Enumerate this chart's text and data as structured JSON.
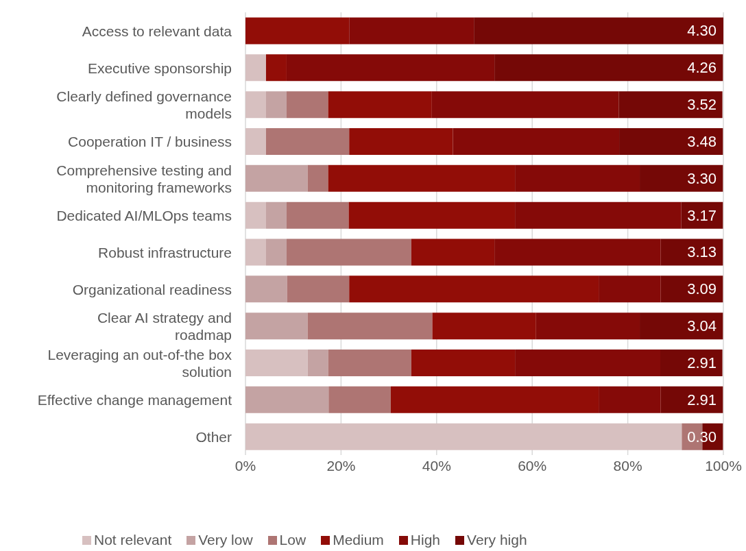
{
  "chart_data": {
    "type": "bar",
    "orientation": "horizontal",
    "stacked": true,
    "categories": [
      "Access to relevant data",
      "Executive sponsorship",
      "Clearly defined governance models",
      "Cooperation IT / business",
      "Comprehensive testing and monitoring frameworks",
      "Dedicated AI/MLOps teams",
      "Robust infrastructure",
      "Organizational readiness",
      "Clear AI strategy and roadmap",
      "Leveraging an out-of-the box solution",
      "Effective change management",
      "Other"
    ],
    "series": [
      {
        "name": "Not relevant",
        "color": "#d7c0c0",
        "values": [
          0,
          4.3,
          4.3,
          4.3,
          0,
          4.3,
          4.3,
          0,
          0,
          13.0,
          0,
          91.3
        ]
      },
      {
        "name": "Very low",
        "color": "#c4a3a3",
        "values": [
          0,
          0,
          4.3,
          0,
          13.0,
          4.3,
          4.3,
          8.7,
          13.0,
          4.3,
          17.4,
          0
        ]
      },
      {
        "name": "Low",
        "color": "#ae7573",
        "values": [
          0,
          0,
          8.7,
          17.4,
          4.3,
          13.0,
          26.1,
          13.0,
          26.1,
          17.4,
          13.0,
          4.3
        ]
      },
      {
        "name": "Medium",
        "color": "#920d07",
        "values": [
          21.7,
          4.3,
          21.7,
          21.7,
          39.1,
          34.8,
          17.4,
          52.2,
          21.7,
          21.7,
          43.5,
          0
        ]
      },
      {
        "name": "High",
        "color": "#850a08",
        "values": [
          26.1,
          43.5,
          39.1,
          34.8,
          26.1,
          34.8,
          34.8,
          13.0,
          21.7,
          30.4,
          13.0,
          0
        ]
      },
      {
        "name": "Very high",
        "color": "#750806",
        "values": [
          52.2,
          47.8,
          21.7,
          21.7,
          17.4,
          8.7,
          13.0,
          13.0,
          17.4,
          13.0,
          13.0,
          4.3
        ]
      }
    ],
    "xlim": [
      0,
      100
    ],
    "xticks": [
      {
        "value": 0,
        "label": "0%"
      },
      {
        "value": 20,
        "label": "20%"
      },
      {
        "value": 40,
        "label": "40%"
      },
      {
        "value": 60,
        "label": "60%"
      },
      {
        "value": 80,
        "label": "80%"
      },
      {
        "value": 100,
        "label": "100%"
      }
    ],
    "grid": "x",
    "legend": "bottom",
    "annotations": [
      {
        "text": "4.30",
        "y": "Access to relevant data"
      },
      {
        "text": "4.26",
        "y": "Executive sponsorship"
      },
      {
        "text": "3.52",
        "y": "Clearly defined governance models"
      },
      {
        "text": "3.48",
        "y": "Cooperation IT / business"
      },
      {
        "text": "3.30",
        "y": "Comprehensive testing and monitoring frameworks"
      },
      {
        "text": "3.17",
        "y": "Dedicated AI/MLOps teams"
      },
      {
        "text": "3.13",
        "y": "Robust infrastructure"
      },
      {
        "text": "3.09",
        "y": "Organizational readiness"
      },
      {
        "text": "3.04",
        "y": "Clear AI strategy and roadmap"
      },
      {
        "text": "2.91",
        "y": "Leveraging an out-of-the box solution"
      },
      {
        "text": "2.91",
        "y": "Effective change management"
      },
      {
        "text": "0.30",
        "y": "Other"
      }
    ]
  }
}
